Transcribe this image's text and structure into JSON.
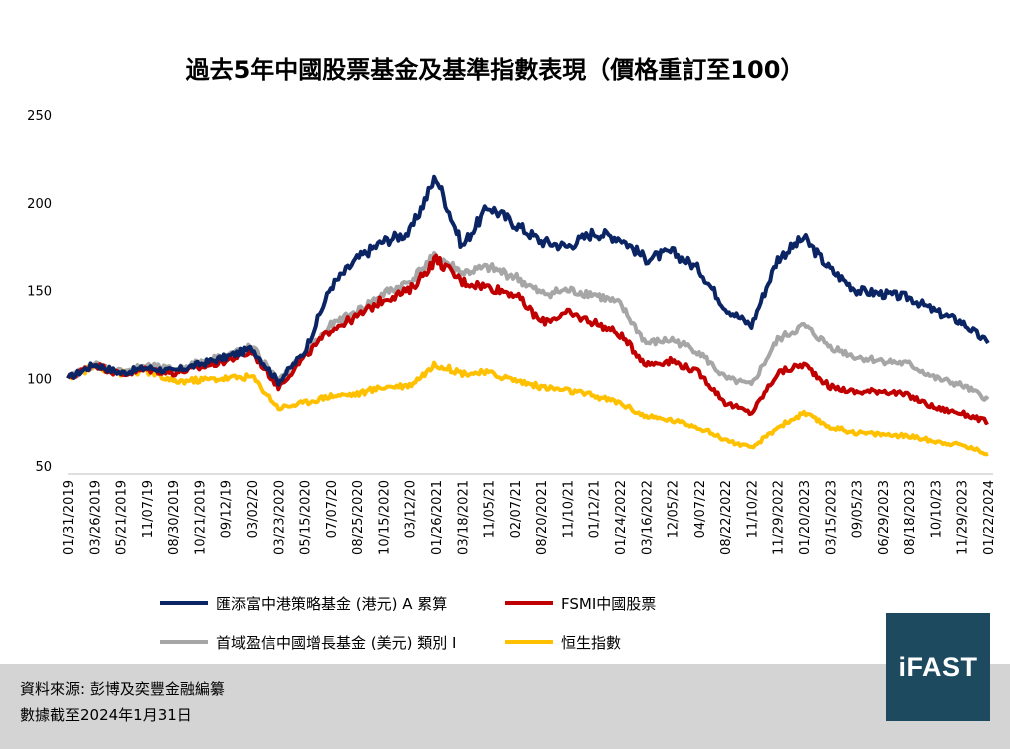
{
  "footer": {
    "source": "資料來源: 彭博及奕豐金融編纂",
    "date_note": "數據截至2024年1月31日",
    "logo": "iFAST"
  },
  "chart_data": {
    "type": "line",
    "title": "過去5年中國股票基金及基準指數表現（價格重訂至100）",
    "xlabel": "",
    "ylabel": "",
    "ylim": [
      50,
      250
    ],
    "yticks": [
      50,
      100,
      150,
      200,
      250
    ],
    "grid": false,
    "legend_position": "bottom",
    "x_tick_labels": [
      "01/31/2019",
      "03/26/2019",
      "05/21/2019",
      "11/07/19",
      "08/30/2019",
      "10/21/2019",
      "09/12/19",
      "03/02/20",
      "03/23/2020",
      "05/15/2020",
      "07/07/20",
      "08/25/2020",
      "10/15/2020",
      "03/12/20",
      "01/26/2021",
      "03/18/2021",
      "11/05/21",
      "02/07/21",
      "08/20/2021",
      "11/10/21",
      "01/12/21",
      "01/24/2022",
      "03/16/2022",
      "12/05/22",
      "04/07/22",
      "08/22/2022",
      "11/10/22",
      "11/29/2022",
      "01/20/2023",
      "03/15/2023",
      "09/05/23",
      "06/29/2023",
      "08/18/2023",
      "10/10/23",
      "11/29/2023",
      "01/22/2024"
    ],
    "x": [
      0,
      1,
      2,
      3,
      4,
      5,
      6,
      7,
      8,
      9,
      10,
      11,
      12,
      13,
      14,
      15,
      16,
      17,
      18,
      19,
      20,
      21,
      22,
      23,
      24,
      25,
      26,
      27,
      28,
      29,
      30,
      31,
      32,
      33,
      34,
      35
    ],
    "series": [
      {
        "name": "匯添富中港策略基金 (港元) A 累算",
        "color": "#0b2463",
        "values": [
          100,
          108,
          103,
          106,
          104,
          108,
          112,
          117,
          98,
          115,
          152,
          168,
          178,
          183,
          215,
          175,
          198,
          188,
          178,
          175,
          183,
          180,
          168,
          172,
          162,
          140,
          130,
          168,
          180,
          162,
          150,
          148,
          146,
          138,
          132,
          120
        ]
      },
      {
        "name": "FSMI中國股票",
        "color": "#c00000",
        "values": [
          100,
          108,
          102,
          105,
          103,
          106,
          110,
          115,
          95,
          112,
          128,
          135,
          145,
          150,
          168,
          155,
          152,
          148,
          132,
          137,
          132,
          125,
          108,
          110,
          103,
          86,
          80,
          103,
          108,
          95,
          92,
          93,
          90,
          83,
          80,
          75
        ]
      },
      {
        "name": "首域盈信中國增長基金 (美元) 類別 I",
        "color": "#a6a6a6",
        "values": [
          100,
          108,
          104,
          107,
          105,
          109,
          113,
          118,
          98,
          114,
          130,
          138,
          148,
          155,
          170,
          160,
          163,
          158,
          148,
          150,
          148,
          142,
          120,
          122,
          115,
          100,
          96,
          122,
          130,
          118,
          112,
          110,
          108,
          100,
          96,
          88
        ]
      },
      {
        "name": "恒生指數",
        "color": "#ffc000",
        "values": [
          100,
          107,
          103,
          104,
          98,
          99,
          100,
          101,
          83,
          86,
          90,
          91,
          95,
          96,
          108,
          103,
          103,
          99,
          95,
          93,
          90,
          86,
          78,
          76,
          72,
          65,
          60,
          72,
          80,
          72,
          69,
          68,
          67,
          64,
          62,
          57
        ]
      }
    ]
  }
}
